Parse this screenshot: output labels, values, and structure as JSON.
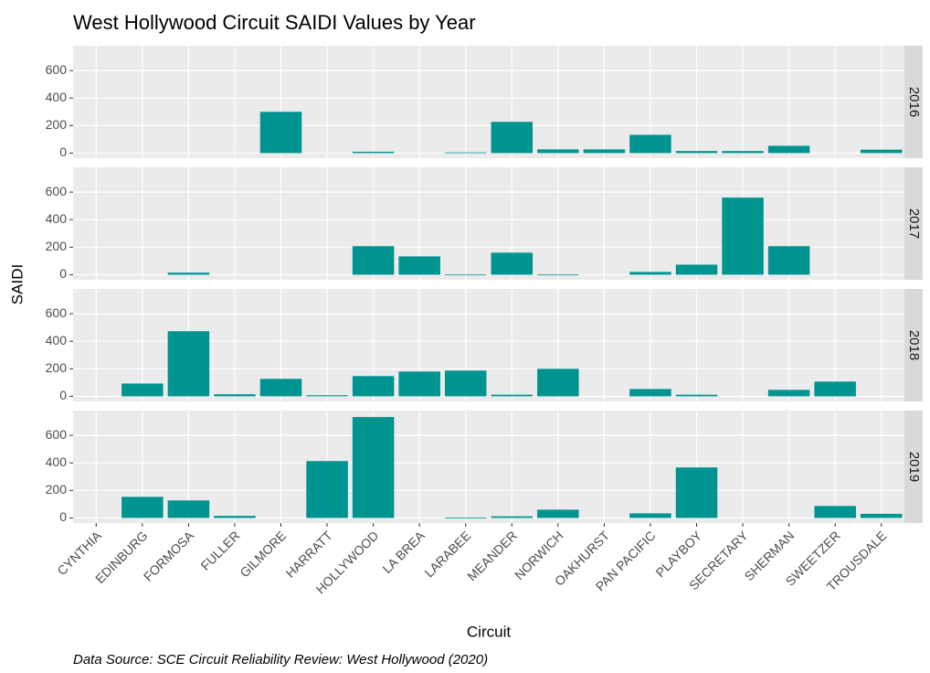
{
  "chart_data": {
    "type": "bar",
    "title": "West Hollywood Circuit SAIDI Values by Year",
    "x_label": "Circuit",
    "y_label": "SAIDI",
    "caption": "Data Source: SCE Circuit Reliability Review: West Hollywood (2020)",
    "color": "#009490",
    "categories": [
      "CYNTHIA",
      "EDINBURG",
      "FORMOSA",
      "FULLER",
      "GILMORE",
      "HARRATT",
      "HOLLYWOOD",
      "LA BREA",
      "LARABEE",
      "MEANDER",
      "NORWICH",
      "OAKHURST",
      "PAN PACIFIC",
      "PLAYBOY",
      "SECRETARY",
      "SHERMAN",
      "SWEETZER",
      "TROUSDALE"
    ],
    "facets": [
      {
        "name": "2016",
        "values": [
          null,
          null,
          null,
          null,
          300,
          null,
          10,
          null,
          5,
          227,
          27,
          27,
          133,
          15,
          15,
          53,
          null,
          25
        ]
      },
      {
        "name": "2017",
        "values": [
          null,
          null,
          15,
          null,
          null,
          null,
          207,
          133,
          2,
          160,
          2,
          null,
          20,
          73,
          560,
          207,
          null,
          null
        ]
      },
      {
        "name": "2018",
        "values": [
          null,
          93,
          473,
          15,
          127,
          8,
          147,
          180,
          187,
          12,
          200,
          null,
          53,
          12,
          null,
          47,
          107,
          null
        ]
      },
      {
        "name": "2019",
        "values": [
          null,
          153,
          127,
          15,
          null,
          413,
          733,
          null,
          3,
          12,
          60,
          null,
          33,
          367,
          null,
          null,
          87,
          30
        ]
      }
    ],
    "ylim": [
      -37,
      780
    ],
    "yticks": [
      0,
      200,
      400,
      600
    ],
    "grid": true
  }
}
